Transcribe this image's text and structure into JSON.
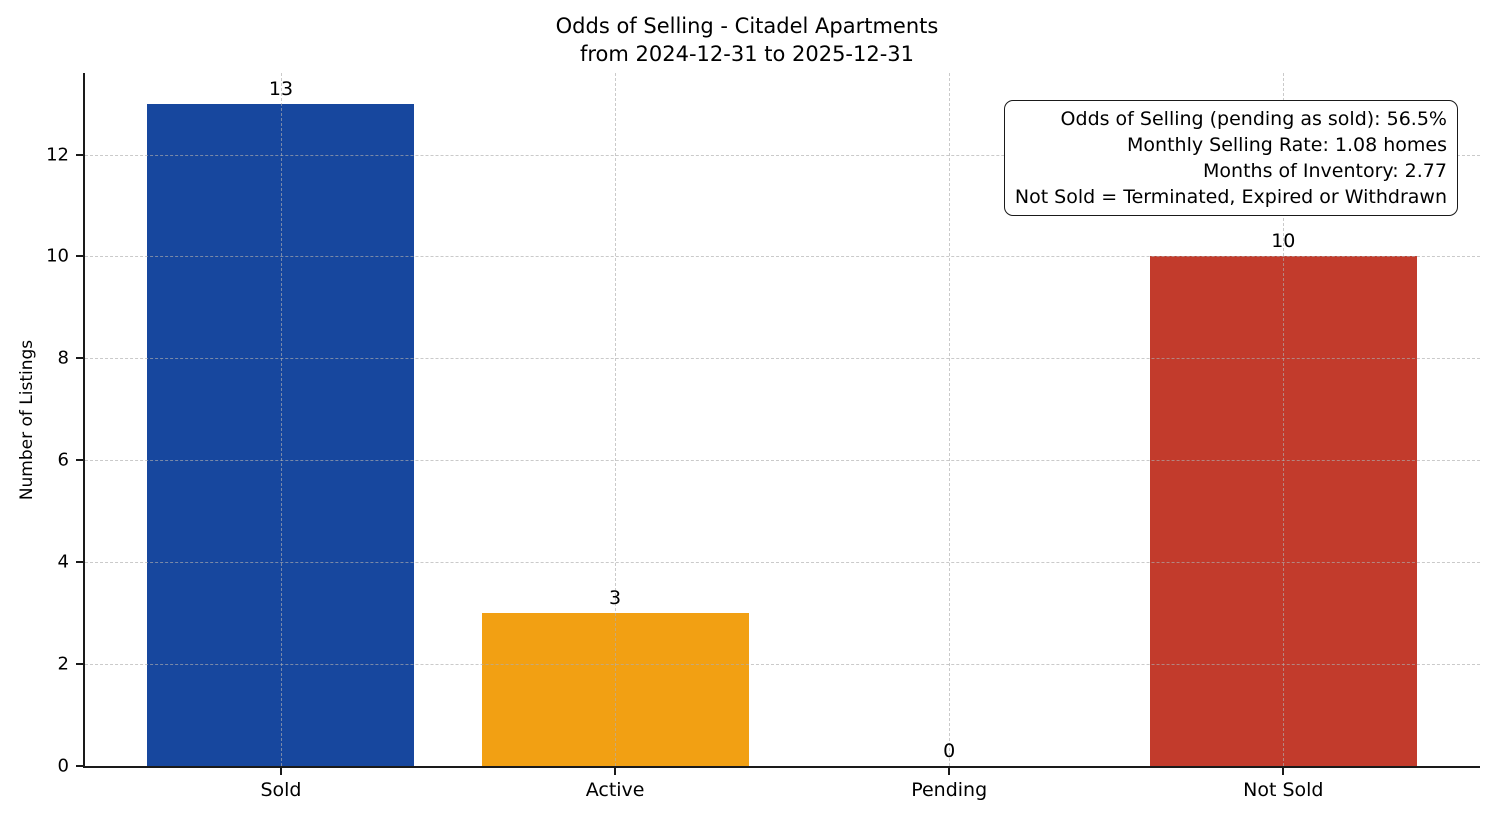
{
  "chart_data": {
    "type": "bar",
    "title": "Odds of Selling - Citadel Apartments",
    "subtitle": "from 2024-12-31 to 2025-12-31",
    "categories": [
      "Sold",
      "Active",
      "Pending",
      "Not Sold"
    ],
    "values": [
      13,
      3,
      0,
      10
    ],
    "value_labels": [
      "13",
      "3",
      "0",
      "10"
    ],
    "bar_colors": [
      "#17479E",
      "#F2A013",
      null,
      "#C23B2C"
    ],
    "ylabel": "Number of Listings",
    "xlabel": "",
    "yticks": [
      0,
      2,
      4,
      6,
      8,
      10,
      12
    ],
    "ylim": [
      0,
      13.6
    ],
    "grid": "dashed-both-axes",
    "legend_position": "none",
    "annotation": {
      "lines": [
        "Odds of Selling (pending as sold): 56.5%",
        "Monthly Selling Rate: 1.08 homes",
        "Months of Inventory: 2.77",
        "Not Sold = Terminated, Expired or Withdrawn"
      ]
    },
    "colors": {
      "spine": "#1a1a1a",
      "grid": "#adadad",
      "background": "#ffffff",
      "text": "#000000"
    }
  }
}
